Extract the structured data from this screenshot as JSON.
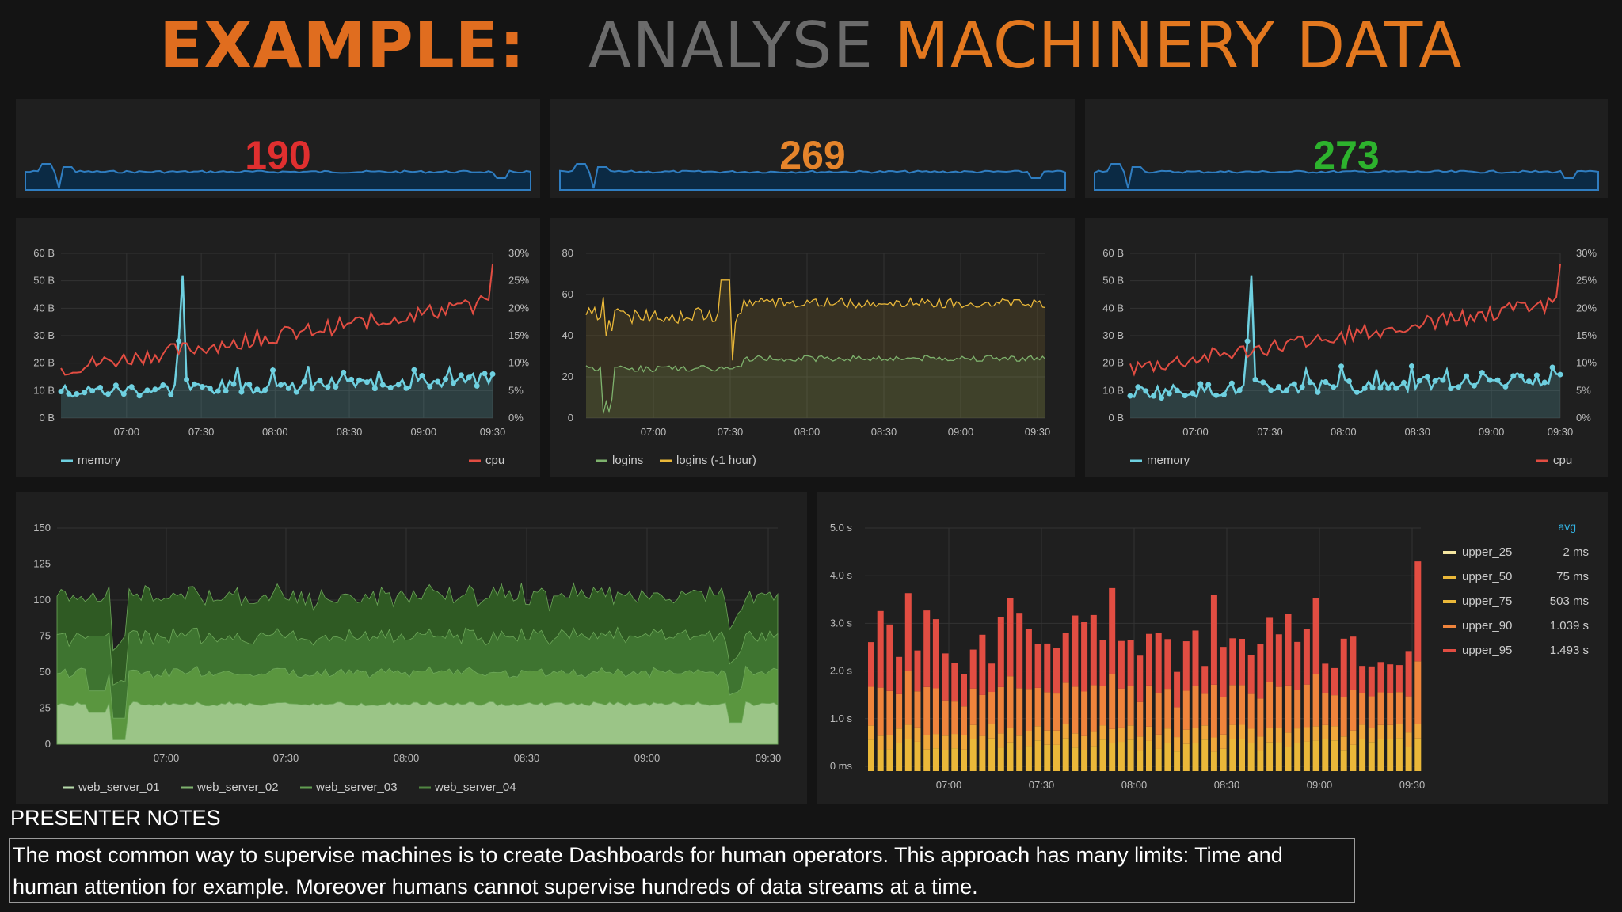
{
  "title": {
    "part1": "EXAMPLE:",
    "part2": "ANALYSE",
    "part3": "MACHINERY DATA"
  },
  "colors": {
    "stat_red": "#e02f2f",
    "stat_orange": "#e5842b",
    "stat_green": "#2db22d",
    "memory": "#6ed0e0",
    "cpu": "#e24d42",
    "logins": "#7eb26d",
    "logins_prev": "#eab839",
    "upper_25": "#f4e5a0",
    "upper_50": "#eab839",
    "upper_75": "#eab839",
    "upper_90": "#ef843c",
    "upper_95": "#e24d42"
  },
  "stats": [
    {
      "value": "190",
      "color": "#e02f2f"
    },
    {
      "value": "269",
      "color": "#e5842b"
    },
    {
      "value": "273",
      "color": "#2db22d"
    }
  ],
  "mem_cpu_chart": {
    "y_left_ticks": [
      "60 B",
      "50 B",
      "40 B",
      "30 B",
      "20 B",
      "10 B",
      "0 B"
    ],
    "y_right_ticks": [
      "30%",
      "25%",
      "20%",
      "15%",
      "10%",
      "5%",
      "0%"
    ],
    "x_ticks": [
      "07:00",
      "07:30",
      "08:00",
      "08:30",
      "09:00",
      "09:30"
    ],
    "legend_left": "memory",
    "legend_right": "cpu"
  },
  "logins_chart": {
    "y_ticks": [
      "80",
      "60",
      "40",
      "20",
      "0"
    ],
    "x_ticks": [
      "07:00",
      "07:30",
      "08:00",
      "08:30",
      "09:00",
      "09:30"
    ],
    "legend": [
      "logins",
      "logins (-1 hour)"
    ]
  },
  "web_chart": {
    "y_ticks": [
      "150",
      "125",
      "100",
      "75",
      "50",
      "25",
      "0"
    ],
    "x_ticks": [
      "07:00",
      "07:30",
      "08:00",
      "08:30",
      "09:00",
      "09:30"
    ],
    "legend": [
      "web_server_01",
      "web_server_02",
      "web_server_03",
      "web_server_04"
    ]
  },
  "latency_chart": {
    "y_ticks": [
      "5.0 s",
      "4.0 s",
      "3.0 s",
      "2.0 s",
      "1.0 s",
      "0 ms"
    ],
    "x_ticks": [
      "07:00",
      "07:30",
      "08:00",
      "08:30",
      "09:00",
      "09:30"
    ],
    "legend_header": "avg",
    "legend": [
      {
        "name": "upper_25",
        "avg": "2 ms"
      },
      {
        "name": "upper_50",
        "avg": "75 ms"
      },
      {
        "name": "upper_75",
        "avg": "503 ms"
      },
      {
        "name": "upper_90",
        "avg": "1.039 s"
      },
      {
        "name": "upper_95",
        "avg": "1.493 s"
      }
    ]
  },
  "notes": {
    "label": "PRESENTER NOTES",
    "text": "The most common way to supervise machines is to create Dashboards for human operators. This approach has many limits: Time and human attention for example. Moreover humans cannot supervise hundreds of data streams at a time."
  }
}
